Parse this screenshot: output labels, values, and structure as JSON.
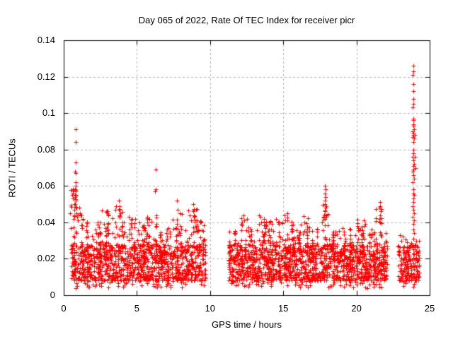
{
  "title": "Day 065 of 2022, Rate Of TEC Index for receiver picr",
  "chart_data": {
    "type": "scatter",
    "title": "Day 065 of 2022, Rate Of TEC Index for receiver picr",
    "xlabel": "GPS time / hours",
    "ylabel": "ROTI / TECUs",
    "xlim": [
      0,
      25
    ],
    "ylim": [
      0,
      0.14
    ],
    "xticks": [
      0,
      5,
      10,
      15,
      20,
      25
    ],
    "yticks": [
      0,
      0.02,
      0.04,
      0.06,
      0.08,
      0.1,
      0.12,
      0.14
    ],
    "xtick_labels": [
      "0",
      "5",
      "10",
      "15",
      "20",
      "25"
    ],
    "ytick_labels": [
      "0",
      "0.02",
      "0.04",
      "0.06",
      "0.08",
      "0.1",
      "0.12",
      "0.14"
    ],
    "grid": true,
    "grid_color": "#b0b0b0",
    "legend": "none",
    "marker": {
      "symbol": "+",
      "color": "#ff0000",
      "size": 7
    },
    "seed": 65,
    "data_gaps": [
      [
        9.7,
        11.25
      ],
      [
        22.1,
        22.85
      ]
    ],
    "cloud_segments": [
      {
        "x0": 0.48,
        "x1": 1.2,
        "peak": 0.058,
        "n": 85
      },
      {
        "x0": 1.2,
        "x1": 1.9,
        "peak": 0.045,
        "n": 85
      },
      {
        "x0": 1.9,
        "x1": 2.6,
        "peak": 0.04,
        "n": 85
      },
      {
        "x0": 2.6,
        "x1": 3.3,
        "peak": 0.047,
        "n": 85
      },
      {
        "x0": 3.3,
        "x1": 4.1,
        "peak": 0.05,
        "n": 95
      },
      {
        "x0": 4.1,
        "x1": 4.9,
        "peak": 0.043,
        "n": 95
      },
      {
        "x0": 4.9,
        "x1": 5.6,
        "peak": 0.039,
        "n": 85
      },
      {
        "x0": 5.6,
        "x1": 6.5,
        "peak": 0.044,
        "n": 105
      },
      {
        "x0": 6.5,
        "x1": 7.4,
        "peak": 0.037,
        "n": 105
      },
      {
        "x0": 7.4,
        "x1": 8.2,
        "peak": 0.046,
        "n": 95
      },
      {
        "x0": 8.2,
        "x1": 9.1,
        "peak": 0.049,
        "n": 105
      },
      {
        "x0": 9.1,
        "x1": 9.7,
        "peak": 0.041,
        "n": 70
      },
      {
        "x0": 11.25,
        "x1": 12.1,
        "peak": 0.036,
        "n": 95
      },
      {
        "x0": 12.1,
        "x1": 12.7,
        "peak": 0.043,
        "n": 70
      },
      {
        "x0": 12.7,
        "x1": 13.2,
        "peak": 0.038,
        "n": 60
      },
      {
        "x0": 13.2,
        "x1": 13.8,
        "peak": 0.045,
        "n": 70
      },
      {
        "x0": 13.8,
        "x1": 14.6,
        "peak": 0.041,
        "n": 95
      },
      {
        "x0": 14.6,
        "x1": 15.3,
        "peak": 0.045,
        "n": 85
      },
      {
        "x0": 15.3,
        "x1": 16.1,
        "peak": 0.041,
        "n": 95
      },
      {
        "x0": 16.1,
        "x1": 16.7,
        "peak": 0.044,
        "n": 70
      },
      {
        "x0": 16.7,
        "x1": 17.6,
        "peak": 0.038,
        "n": 105
      },
      {
        "x0": 17.6,
        "x1": 18.2,
        "peak": 0.05,
        "n": 70
      },
      {
        "x0": 18.2,
        "x1": 19.0,
        "peak": 0.036,
        "n": 95
      },
      {
        "x0": 19.0,
        "x1": 19.8,
        "peak": 0.037,
        "n": 95
      },
      {
        "x0": 19.8,
        "x1": 20.6,
        "peak": 0.042,
        "n": 95
      },
      {
        "x0": 20.6,
        "x1": 21.3,
        "peak": 0.036,
        "n": 85
      },
      {
        "x0": 21.3,
        "x1": 21.8,
        "peak": 0.048,
        "n": 60
      },
      {
        "x0": 21.8,
        "x1": 22.1,
        "peak": 0.033,
        "n": 35
      },
      {
        "x0": 22.85,
        "x1": 23.45,
        "peak": 0.031,
        "n": 55
      },
      {
        "x0": 23.45,
        "x1": 24.3,
        "peak": 0.03,
        "n": 95
      }
    ],
    "spike_points": [
      [
        0.8,
        0.091
      ],
      [
        0.81,
        0.084
      ],
      [
        0.8,
        0.073
      ],
      [
        0.79,
        0.068
      ],
      [
        0.82,
        0.067
      ],
      [
        0.8,
        0.062
      ],
      [
        0.83,
        0.06
      ],
      [
        0.78,
        0.058
      ],
      [
        0.81,
        0.057
      ],
      [
        0.84,
        0.055
      ],
      [
        0.79,
        0.054
      ],
      [
        0.82,
        0.052
      ],
      [
        0.77,
        0.05
      ],
      [
        0.85,
        0.048
      ],
      [
        0.74,
        0.047
      ],
      [
        0.88,
        0.045
      ],
      [
        0.71,
        0.044
      ],
      [
        0.92,
        0.043
      ],
      [
        0.68,
        0.042
      ],
      [
        0.95,
        0.041
      ],
      [
        0.62,
        0.057
      ],
      [
        0.6,
        0.055
      ],
      [
        0.64,
        0.056
      ],
      [
        0.61,
        0.053
      ],
      [
        0.63,
        0.058
      ],
      [
        1.05,
        0.048
      ],
      [
        1.1,
        0.045
      ],
      [
        1.22,
        0.044
      ],
      [
        1.3,
        0.042
      ],
      [
        2.95,
        0.046
      ],
      [
        3.0,
        0.045
      ],
      [
        3.05,
        0.044
      ],
      [
        3.55,
        0.047
      ],
      [
        3.78,
        0.052
      ],
      [
        3.82,
        0.049
      ],
      [
        3.85,
        0.045
      ],
      [
        4.45,
        0.043
      ],
      [
        5.15,
        0.04
      ],
      [
        5.85,
        0.042
      ],
      [
        6.28,
        0.069
      ],
      [
        6.3,
        0.058
      ],
      [
        6.25,
        0.057
      ],
      [
        6.32,
        0.044
      ],
      [
        7.15,
        0.037
      ],
      [
        7.74,
        0.052
      ],
      [
        7.78,
        0.047
      ],
      [
        8.62,
        0.044
      ],
      [
        8.85,
        0.05
      ],
      [
        8.88,
        0.047
      ],
      [
        8.92,
        0.043
      ],
      [
        9.35,
        0.04
      ],
      [
        11.3,
        0.035
      ],
      [
        12.3,
        0.044
      ],
      [
        12.35,
        0.041
      ],
      [
        13.45,
        0.043
      ],
      [
        13.5,
        0.04
      ],
      [
        14.5,
        0.042
      ],
      [
        15.1,
        0.044
      ],
      [
        15.15,
        0.041
      ],
      [
        16.4,
        0.0435
      ],
      [
        16.45,
        0.04
      ],
      [
        17.84,
        0.06
      ],
      [
        17.87,
        0.058
      ],
      [
        17.83,
        0.056
      ],
      [
        17.88,
        0.054
      ],
      [
        17.86,
        0.052
      ],
      [
        17.85,
        0.05
      ],
      [
        17.9,
        0.048
      ],
      [
        17.82,
        0.046
      ],
      [
        17.87,
        0.044
      ],
      [
        17.85,
        0.042
      ],
      [
        19.6,
        0.036
      ],
      [
        20.5,
        0.041
      ],
      [
        20.55,
        0.038
      ],
      [
        21.6,
        0.051
      ],
      [
        21.63,
        0.049
      ],
      [
        21.58,
        0.048
      ],
      [
        21.65,
        0.046
      ],
      [
        21.61,
        0.044
      ],
      [
        21.57,
        0.042
      ],
      [
        21.62,
        0.04
      ],
      [
        22.0,
        0.034
      ],
      [
        22.95,
        0.033
      ],
      [
        23.05,
        0.03
      ],
      [
        23.15,
        0.032
      ],
      [
        23.88,
        0.126
      ],
      [
        23.9,
        0.123
      ],
      [
        23.86,
        0.121
      ],
      [
        23.89,
        0.116
      ],
      [
        23.87,
        0.112
      ],
      [
        23.91,
        0.108
      ],
      [
        23.88,
        0.105
      ],
      [
        23.85,
        0.103
      ],
      [
        23.88,
        0.097
      ],
      [
        23.9,
        0.096
      ],
      [
        23.87,
        0.094
      ],
      [
        23.89,
        0.093
      ],
      [
        23.92,
        0.091
      ],
      [
        23.86,
        0.09
      ],
      [
        23.88,
        0.089
      ],
      [
        23.9,
        0.088
      ],
      [
        23.85,
        0.087
      ],
      [
        23.93,
        0.086
      ],
      [
        23.87,
        0.084
      ],
      [
        23.89,
        0.08
      ],
      [
        23.91,
        0.078
      ],
      [
        23.86,
        0.076
      ],
      [
        23.88,
        0.074
      ],
      [
        23.92,
        0.072
      ],
      [
        23.87,
        0.071
      ],
      [
        23.9,
        0.069
      ],
      [
        23.85,
        0.068
      ],
      [
        23.89,
        0.066
      ],
      [
        23.93,
        0.064
      ],
      [
        23.86,
        0.062
      ],
      [
        23.9,
        0.058
      ],
      [
        23.88,
        0.056
      ],
      [
        23.95,
        0.055
      ],
      [
        23.87,
        0.053
      ],
      [
        23.91,
        0.051
      ],
      [
        23.84,
        0.049
      ],
      [
        23.89,
        0.047
      ],
      [
        23.96,
        0.045
      ],
      [
        23.86,
        0.043
      ],
      [
        23.92,
        0.041
      ],
      [
        23.88,
        0.039
      ],
      [
        23.9,
        0.036
      ],
      [
        23.94,
        0.034
      ],
      [
        23.87,
        0.031
      ],
      [
        24.0,
        0.076
      ],
      [
        24.02,
        0.07
      ],
      [
        23.98,
        0.088
      ]
    ]
  }
}
